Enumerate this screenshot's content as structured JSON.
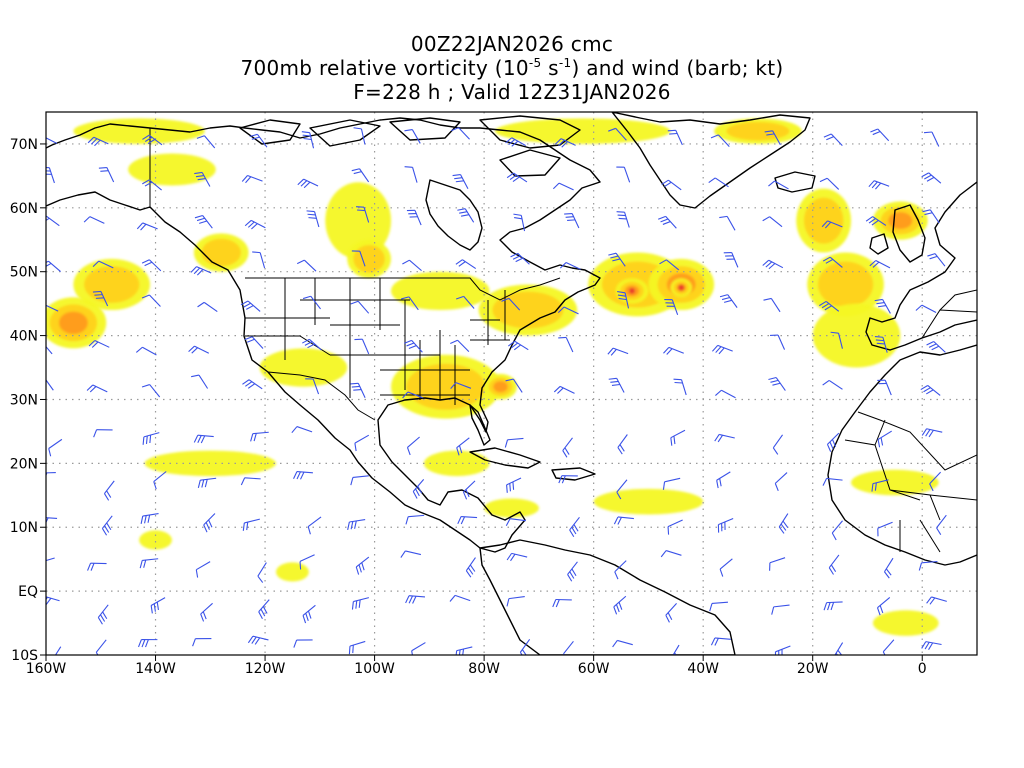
{
  "title": {
    "line1": "00Z22JAN2026 cmc",
    "line2_pre": "700mb relative vorticity (10",
    "line2_exp1": "-5",
    "line2_mid": " s",
    "line2_exp2": "-1",
    "line2_post": ") and wind (barb; kt)",
    "line3": "F=228 h ; Valid 12Z31JAN2026"
  },
  "map_data": {
    "projection": "cylindrical equidistant",
    "lon_range": [
      -160,
      10
    ],
    "lat_range": [
      -10,
      75
    ],
    "x_axis_ticks": [
      {
        "lon": -160,
        "label": "160W"
      },
      {
        "lon": -140,
        "label": "140W"
      },
      {
        "lon": -120,
        "label": "120W"
      },
      {
        "lon": -100,
        "label": "100W"
      },
      {
        "lon": -80,
        "label": "80W"
      },
      {
        "lon": -60,
        "label": "60W"
      },
      {
        "lon": -40,
        "label": "40W"
      },
      {
        "lon": -20,
        "label": "20W"
      },
      {
        "lon": 0,
        "label": "0"
      }
    ],
    "y_axis_ticks": [
      {
        "lat": 70,
        "label": "70N"
      },
      {
        "lat": 60,
        "label": "60N"
      },
      {
        "lat": 50,
        "label": "50N"
      },
      {
        "lat": 40,
        "label": "40N"
      },
      {
        "lat": 30,
        "label": "30N"
      },
      {
        "lat": 20,
        "label": "20N"
      },
      {
        "lat": 10,
        "label": "10N"
      },
      {
        "lat": 0,
        "label": "EQ"
      },
      {
        "lat": -10,
        "label": "10S"
      }
    ],
    "grid": "dotted",
    "colors": {
      "shade_low": "#f4f724",
      "shade_mid": "#ffd21e",
      "shade_high": "#ff9a1e",
      "shade_max": "#e8362a",
      "barb": "#3a52e8",
      "coast": "#000000",
      "grid": "#9a9a9a"
    },
    "vorticity_features": [
      {
        "lon": -155,
        "lat": 42,
        "rx": 6,
        "ry": 4,
        "level": 3
      },
      {
        "lon": -148,
        "lat": 48,
        "rx": 7,
        "ry": 4,
        "level": 2
      },
      {
        "lon": -128,
        "lat": 53,
        "rx": 5,
        "ry": 3,
        "level": 2
      },
      {
        "lon": -143,
        "lat": 72,
        "rx": 12,
        "ry": 2,
        "level": 1
      },
      {
        "lon": -137,
        "lat": 66,
        "rx": 8,
        "ry": 2.5,
        "level": 1
      },
      {
        "lon": -103,
        "lat": 58,
        "rx": 6,
        "ry": 6,
        "level": 1
      },
      {
        "lon": -101,
        "lat": 52,
        "rx": 4,
        "ry": 3,
        "level": 2
      },
      {
        "lon": -88,
        "lat": 47,
        "rx": 9,
        "ry": 3,
        "level": 1
      },
      {
        "lon": -72,
        "lat": 44,
        "rx": 9,
        "ry": 4,
        "level": 2
      },
      {
        "lon": -87,
        "lat": 32,
        "rx": 10,
        "ry": 5,
        "level": 2
      },
      {
        "lon": -77,
        "lat": 32,
        "rx": 3,
        "ry": 2,
        "level": 3
      },
      {
        "lon": -52,
        "lat": 48,
        "rx": 9,
        "ry": 5,
        "level": 2
      },
      {
        "lon": -44,
        "lat": 48,
        "rx": 6,
        "ry": 4,
        "level": 3
      },
      {
        "lon": -53,
        "lat": 47,
        "rx": 3,
        "ry": 2,
        "level": 4
      },
      {
        "lon": -44,
        "lat": 47.5,
        "rx": 2,
        "ry": 1.5,
        "level": 4
      },
      {
        "lon": -18,
        "lat": 58,
        "rx": 5,
        "ry": 5,
        "level": 2
      },
      {
        "lon": -14,
        "lat": 48,
        "rx": 7,
        "ry": 5,
        "level": 2
      },
      {
        "lon": -4,
        "lat": 58,
        "rx": 5,
        "ry": 3,
        "level": 3
      },
      {
        "lon": -12,
        "lat": 40,
        "rx": 8,
        "ry": 5,
        "level": 1
      },
      {
        "lon": -30,
        "lat": 72,
        "rx": 8,
        "ry": 2,
        "level": 2
      },
      {
        "lon": -62,
        "lat": 72,
        "rx": 16,
        "ry": 2,
        "level": 1
      },
      {
        "lon": -113,
        "lat": 35,
        "rx": 8,
        "ry": 3,
        "level": 1
      },
      {
        "lon": -130,
        "lat": 20,
        "rx": 12,
        "ry": 2,
        "level": 1
      },
      {
        "lon": -85,
        "lat": 20,
        "rx": 6,
        "ry": 2,
        "level": 1
      },
      {
        "lon": -50,
        "lat": 14,
        "rx": 10,
        "ry": 2,
        "level": 1
      },
      {
        "lon": -5,
        "lat": 17,
        "rx": 8,
        "ry": 2,
        "level": 1
      },
      {
        "lon": -3,
        "lat": -5,
        "rx": 6,
        "ry": 2,
        "level": 1
      },
      {
        "lon": -140,
        "lat": 8,
        "rx": 3,
        "ry": 1.5,
        "level": 1
      },
      {
        "lon": -115,
        "lat": 3,
        "rx": 3,
        "ry": 1.5,
        "level": 1
      },
      {
        "lon": -75,
        "lat": 13,
        "rx": 5,
        "ry": 1.5,
        "level": 1
      }
    ]
  }
}
